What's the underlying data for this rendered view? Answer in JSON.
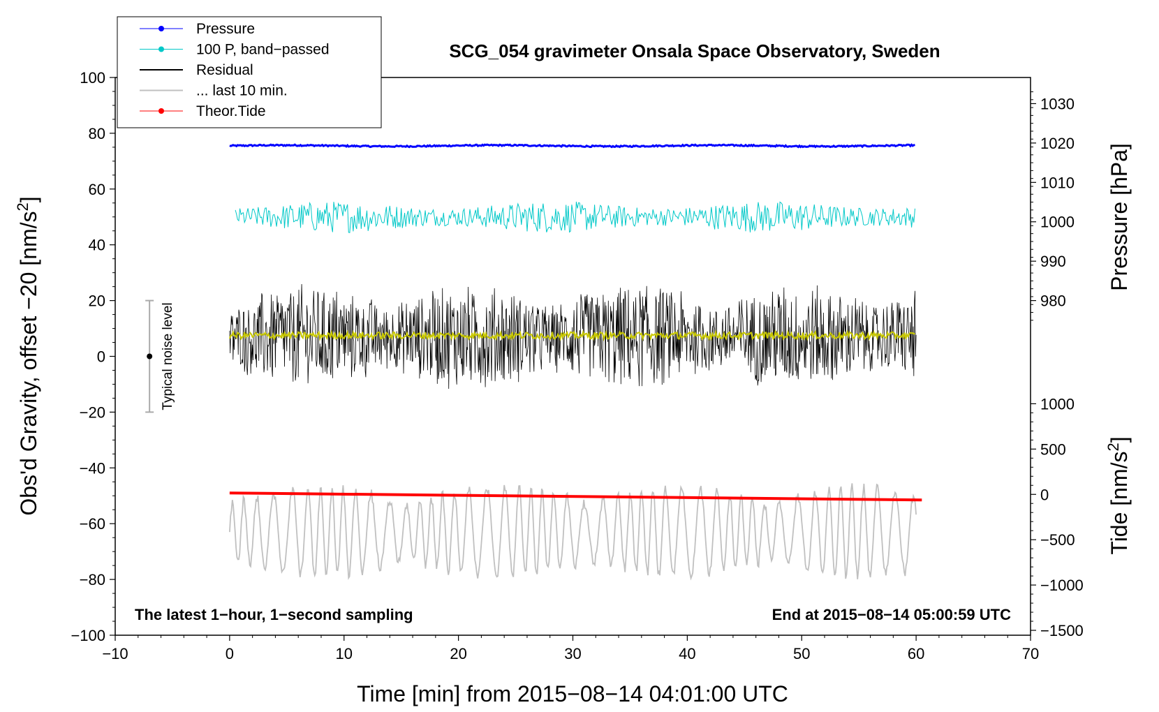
{
  "chart_data": {
    "type": "line",
    "title": "SCG_054 gravimeter Onsala Space Observatory, Sweden",
    "xlabel": "Time [min] from 2015−08−14 04:01:00 UTC",
    "ylabel_left_prefix": "Obs'd Gravity, offset −20 [nm/s",
    "ylabel_left_sup": "2",
    "ylabel_left_suffix": "]",
    "ylabel_right_top": "Pressure [hPa]",
    "ylabel_right_bottom_prefix": "Tide [nm/s",
    "ylabel_right_bottom_sup": "2",
    "ylabel_right_bottom_suffix": "]",
    "xlim": [
      -10,
      70
    ],
    "ylim_left": [
      -100,
      100
    ],
    "ylim_pressure": [
      970,
      1033
    ],
    "ylim_tide": [
      -1500,
      1000
    ],
    "x_ticks": [
      -10,
      0,
      10,
      20,
      30,
      40,
      50,
      60,
      70
    ],
    "x_tick_labels": [
      "−10",
      "0",
      "10",
      "20",
      "30",
      "40",
      "50",
      "60",
      "70"
    ],
    "y_left_ticks": [
      -100,
      -80,
      -60,
      -40,
      -20,
      0,
      20,
      40,
      60,
      80,
      100
    ],
    "y_left_tick_labels": [
      "−100",
      "−80",
      "−60",
      "−40",
      "−20",
      "0",
      "20",
      "40",
      "60",
      "80",
      "100"
    ],
    "y_pressure_ticks": [
      980,
      990,
      1000,
      1010,
      1020,
      1030
    ],
    "y_pressure_tick_labels": [
      "980",
      "990",
      "1000",
      "1010",
      "1020",
      "1030"
    ],
    "y_tide_ticks": [
      -1500,
      -1000,
      -500,
      0,
      500,
      1000
    ],
    "y_tide_tick_labels": [
      "−1500",
      "−1000",
      "−500",
      "0",
      "500",
      "1000"
    ],
    "annotation_left": "The latest 1−hour, 1−second sampling",
    "annotation_right": "End at 2015−08−14 05:00:59 UTC",
    "noise_label": "Typical noise level",
    "noise_bar": {
      "x": -7,
      "center": 0,
      "low": -20,
      "high": 20
    },
    "series": [
      {
        "name": "Pressure",
        "color": "#0000ff",
        "x_range": [
          0,
          60
        ],
        "approx_left_axis_value": 75.5,
        "approx_hpa": 1019
      },
      {
        "name": "100 P, band−passed",
        "color": "#00c8c8",
        "x_range": [
          0.5,
          60
        ],
        "approx_center": 50,
        "approx_amplitude": 4
      },
      {
        "name": "Residual",
        "color": "#000000",
        "x_range": [
          0,
          60
        ],
        "approx_center": 7,
        "approx_range": [
          -17,
          35
        ]
      },
      {
        "name": "... last 10 min.",
        "color": "#c0c0c0",
        "x_range": [
          0,
          60
        ],
        "approx_center": -63,
        "approx_range": [
          -84,
          -42
        ]
      },
      {
        "name": "Theor.Tide",
        "color": "#ff0000",
        "x_range": [
          0,
          60.5
        ],
        "start": -49,
        "end": -51.5
      }
    ],
    "smoothed_residual": {
      "color": "#c8c800",
      "approx_center": 7.5
    },
    "legend": [
      {
        "label": "Pressure",
        "color": "#0000ff",
        "marker": true
      },
      {
        "label": "100 P, band−passed",
        "color": "#00c8c8",
        "marker": true
      },
      {
        "label": "Residual",
        "color": "#000000",
        "marker": false
      },
      {
        "label": "... last 10 min.",
        "color": "#c0c0c0",
        "marker": false
      },
      {
        "label": "Theor.Tide",
        "color": "#ff0000",
        "marker": true
      }
    ]
  }
}
